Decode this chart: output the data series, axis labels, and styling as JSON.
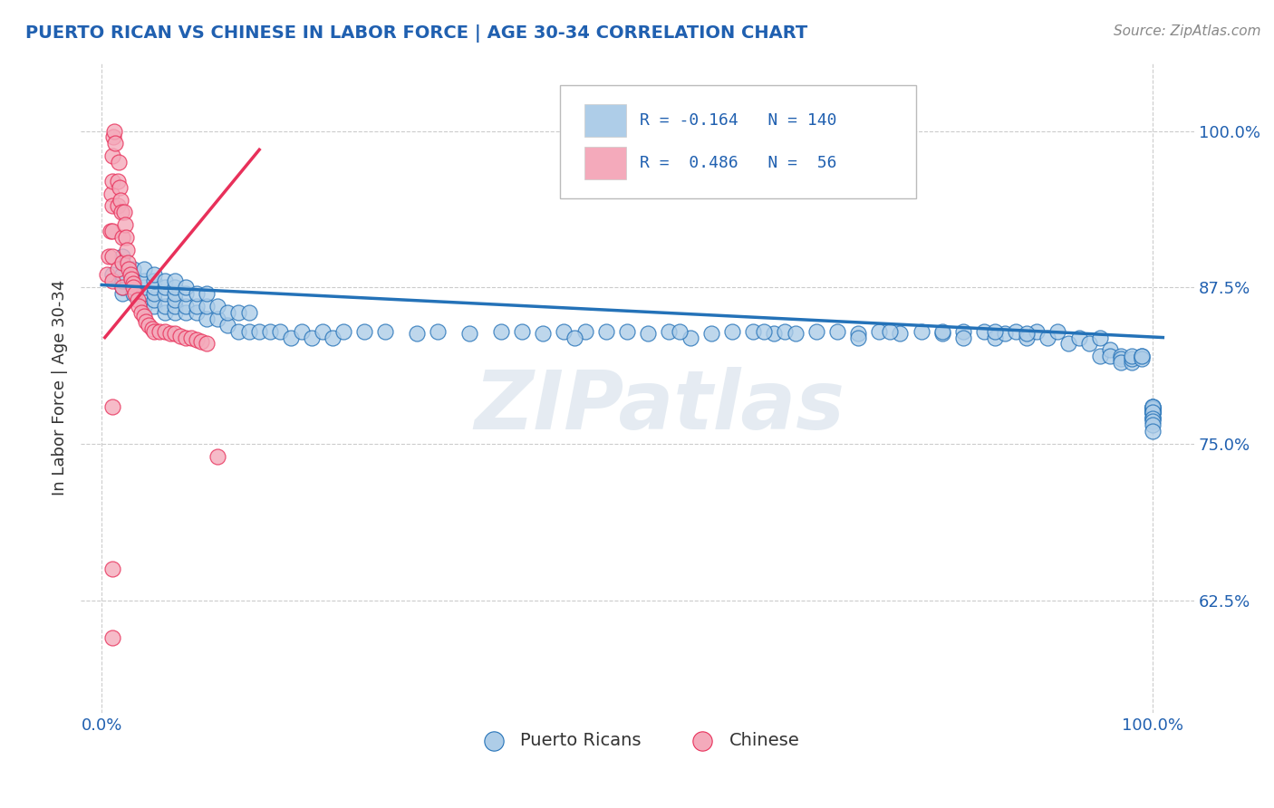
{
  "title": "PUERTO RICAN VS CHINESE IN LABOR FORCE | AGE 30-34 CORRELATION CHART",
  "source": "Source: ZipAtlas.com",
  "ylabel": "In Labor Force | Age 30-34",
  "yticks": [
    0.625,
    0.75,
    0.875,
    1.0
  ],
  "ytick_labels": [
    "62.5%",
    "75.0%",
    "87.5%",
    "100.0%"
  ],
  "xlim": [
    -0.02,
    1.04
  ],
  "ylim": [
    0.535,
    1.055
  ],
  "blue_R": -0.164,
  "blue_N": 140,
  "pink_R": 0.486,
  "pink_N": 56,
  "blue_color": "#aecde8",
  "pink_color": "#f4aabb",
  "blue_line_color": "#2472b8",
  "pink_line_color": "#e8305a",
  "legend_blue_label": "Puerto Ricans",
  "legend_pink_label": "Chinese",
  "watermark": "ZIPatlas",
  "bg_color": "#ffffff",
  "grid_color": "#cccccc",
  "title_color": "#2060b0",
  "source_color": "#888888",
  "blue_scatter_x": [
    0.01,
    0.02,
    0.02,
    0.02,
    0.02,
    0.02,
    0.02,
    0.03,
    0.03,
    0.03,
    0.03,
    0.03,
    0.04,
    0.04,
    0.04,
    0.04,
    0.04,
    0.05,
    0.05,
    0.05,
    0.05,
    0.05,
    0.05,
    0.06,
    0.06,
    0.06,
    0.06,
    0.06,
    0.07,
    0.07,
    0.07,
    0.07,
    0.07,
    0.07,
    0.08,
    0.08,
    0.08,
    0.08,
    0.09,
    0.09,
    0.09,
    0.1,
    0.1,
    0.1,
    0.11,
    0.11,
    0.12,
    0.12,
    0.13,
    0.13,
    0.14,
    0.14,
    0.15,
    0.16,
    0.17,
    0.18,
    0.19,
    0.2,
    0.21,
    0.22,
    0.23,
    0.25,
    0.27,
    0.3,
    0.32,
    0.35,
    0.38,
    0.4,
    0.42,
    0.44,
    0.46,
    0.5,
    0.52,
    0.54,
    0.56,
    0.6,
    0.62,
    0.64,
    0.65,
    0.66,
    0.68,
    0.7,
    0.72,
    0.74,
    0.76,
    0.78,
    0.8,
    0.82,
    0.84,
    0.85,
    0.86,
    0.87,
    0.88,
    0.89,
    0.9,
    0.91,
    0.92,
    0.93,
    0.94,
    0.95,
    0.95,
    0.96,
    0.96,
    0.97,
    0.97,
    0.97,
    0.98,
    0.98,
    0.98,
    0.99,
    0.99,
    0.99,
    1.0,
    1.0,
    1.0,
    1.0,
    1.0,
    1.0,
    1.0,
    1.0,
    1.0,
    1.0,
    1.0,
    1.0,
    1.0,
    1.0,
    1.0,
    1.0,
    1.0,
    0.45,
    0.48,
    0.55,
    0.58,
    0.63,
    0.72,
    0.75,
    0.8,
    0.82,
    0.85,
    0.88
  ],
  "blue_scatter_y": [
    0.885,
    0.87,
    0.875,
    0.88,
    0.885,
    0.895,
    0.9,
    0.87,
    0.875,
    0.88,
    0.885,
    0.89,
    0.86,
    0.87,
    0.875,
    0.88,
    0.89,
    0.86,
    0.865,
    0.87,
    0.875,
    0.88,
    0.885,
    0.855,
    0.86,
    0.87,
    0.875,
    0.88,
    0.855,
    0.86,
    0.865,
    0.87,
    0.875,
    0.88,
    0.855,
    0.86,
    0.87,
    0.875,
    0.855,
    0.86,
    0.87,
    0.85,
    0.86,
    0.87,
    0.85,
    0.86,
    0.845,
    0.855,
    0.84,
    0.855,
    0.84,
    0.855,
    0.84,
    0.84,
    0.84,
    0.835,
    0.84,
    0.835,
    0.84,
    0.835,
    0.84,
    0.84,
    0.84,
    0.838,
    0.84,
    0.838,
    0.84,
    0.84,
    0.838,
    0.84,
    0.84,
    0.84,
    0.838,
    0.84,
    0.835,
    0.84,
    0.84,
    0.838,
    0.84,
    0.838,
    0.84,
    0.84,
    0.838,
    0.84,
    0.838,
    0.84,
    0.838,
    0.84,
    0.84,
    0.835,
    0.838,
    0.84,
    0.835,
    0.84,
    0.835,
    0.84,
    0.83,
    0.835,
    0.83,
    0.835,
    0.82,
    0.825,
    0.82,
    0.82,
    0.818,
    0.815,
    0.815,
    0.818,
    0.82,
    0.82,
    0.818,
    0.82,
    0.775,
    0.78,
    0.778,
    0.775,
    0.78,
    0.778,
    0.775,
    0.77,
    0.772,
    0.775,
    0.778,
    0.78,
    0.775,
    0.77,
    0.768,
    0.765,
    0.76,
    0.835,
    0.84,
    0.84,
    0.838,
    0.84,
    0.835,
    0.84,
    0.84,
    0.835,
    0.84,
    0.838
  ],
  "pink_scatter_x": [
    0.005,
    0.007,
    0.008,
    0.009,
    0.01,
    0.01,
    0.01,
    0.01,
    0.01,
    0.01,
    0.011,
    0.012,
    0.013,
    0.015,
    0.015,
    0.015,
    0.016,
    0.017,
    0.018,
    0.019,
    0.02,
    0.02,
    0.02,
    0.021,
    0.022,
    0.023,
    0.024,
    0.025,
    0.026,
    0.027,
    0.028,
    0.03,
    0.03,
    0.032,
    0.034,
    0.035,
    0.038,
    0.04,
    0.042,
    0.045,
    0.048,
    0.05,
    0.055,
    0.06,
    0.065,
    0.07,
    0.075,
    0.08,
    0.085,
    0.09,
    0.095,
    0.1,
    0.11,
    0.01,
    0.01,
    0.01
  ],
  "pink_scatter_y": [
    0.885,
    0.9,
    0.92,
    0.95,
    0.88,
    0.9,
    0.92,
    0.94,
    0.96,
    0.98,
    0.995,
    1.0,
    0.99,
    0.96,
    0.94,
    0.89,
    0.975,
    0.955,
    0.945,
    0.935,
    0.875,
    0.895,
    0.915,
    0.935,
    0.925,
    0.915,
    0.905,
    0.895,
    0.89,
    0.885,
    0.882,
    0.878,
    0.875,
    0.87,
    0.865,
    0.86,
    0.855,
    0.852,
    0.848,
    0.845,
    0.842,
    0.84,
    0.84,
    0.84,
    0.838,
    0.838,
    0.836,
    0.835,
    0.835,
    0.833,
    0.832,
    0.83,
    0.74,
    0.78,
    0.65,
    0.595
  ],
  "pink_line_x0": 0.003,
  "pink_line_x1": 0.15,
  "pink_line_y0": 0.835,
  "pink_line_y1": 0.985,
  "blue_line_x0": 0.0,
  "blue_line_x1": 1.01,
  "blue_line_y0": 0.877,
  "blue_line_y1": 0.835
}
